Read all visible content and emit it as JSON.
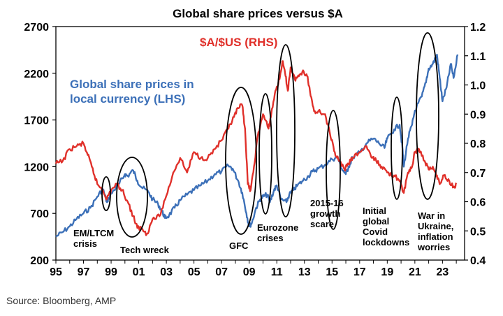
{
  "chart_data": {
    "type": "line",
    "title": "Global share prices versus $A",
    "x_tick_labels": [
      "95",
      "97",
      "99",
      "01",
      "03",
      "05",
      "07",
      "09",
      "11",
      "13",
      "15",
      "17",
      "19",
      "21",
      "23"
    ],
    "x_tick_years": [
      1995,
      1997,
      1999,
      2001,
      2003,
      2005,
      2007,
      2009,
      2011,
      2013,
      2015,
      2017,
      2019,
      2021,
      2023
    ],
    "xlim": [
      1995,
      2024.6
    ],
    "left_axis": {
      "ticks": [
        200,
        700,
        1200,
        1700,
        2200,
        2700
      ],
      "ylim": [
        200,
        2700
      ]
    },
    "right_axis": {
      "ticks": [
        "0.4",
        "0.5",
        "0.6",
        "0.7",
        "0.8",
        "0.9",
        "1.0",
        "1.1",
        "1.2"
      ],
      "ylim": [
        0.4,
        1.2
      ]
    },
    "series": [
      {
        "name": "Global share prices in local currency (LHS)",
        "legend_lines": [
          "Global share prices in",
          "local currency (LHS)"
        ],
        "axis": "left",
        "color": "#3c70b8",
        "x": [
          1995.0,
          1995.5,
          1996.0,
          1996.5,
          1997.0,
          1997.5,
          1998.0,
          1998.4,
          1998.7,
          1998.8,
          1999.2,
          1999.6,
          2000.0,
          2000.2,
          2000.6,
          2000.9,
          2001.2,
          2001.7,
          2002.0,
          2002.4,
          2002.7,
          2002.9,
          2003.2,
          2003.6,
          2004.0,
          2004.5,
          2005.0,
          2005.5,
          2006.0,
          2006.5,
          2007.0,
          2007.5,
          2007.8,
          2008.2,
          2008.5,
          2008.8,
          2009.0,
          2009.2,
          2009.5,
          2009.8,
          2010.0,
          2010.3,
          2010.5,
          2010.8,
          2011.0,
          2011.3,
          2011.7,
          2011.9,
          2012.2,
          2012.5,
          2012.9,
          2013.3,
          2013.6,
          2014.0,
          2014.5,
          2015.0,
          2015.4,
          2015.7,
          2016.0,
          2016.2,
          2016.5,
          2017.0,
          2017.5,
          2018.0,
          2018.4,
          2018.8,
          2019.0,
          2019.5,
          2019.9,
          2020.1,
          2020.2,
          2020.5,
          2020.8,
          2021.0,
          2021.5,
          2021.8,
          2022.0,
          2022.3,
          2022.6,
          2022.8,
          2023.0,
          2023.3,
          2023.6,
          2023.8,
          2024.1
        ],
        "values": [
          450,
          500,
          560,
          640,
          700,
          760,
          880,
          960,
          820,
          860,
          950,
          1020,
          1120,
          1100,
          1160,
          1050,
          980,
          930,
          850,
          800,
          720,
          650,
          680,
          760,
          840,
          900,
          950,
          1000,
          1050,
          1120,
          1150,
          1210,
          1180,
          1050,
          920,
          700,
          560,
          600,
          760,
          850,
          880,
          900,
          820,
          950,
          1000,
          850,
          820,
          900,
          950,
          1000,
          1050,
          1100,
          1150,
          1180,
          1220,
          1280,
          1300,
          1180,
          1120,
          1200,
          1300,
          1350,
          1450,
          1500,
          1450,
          1400,
          1500,
          1600,
          1650,
          1400,
          1200,
          1500,
          1650,
          1800,
          1950,
          2100,
          2250,
          2300,
          2400,
          2150,
          1900,
          2050,
          2300,
          2150,
          2400
        ]
      },
      {
        "name": "$A/$US (RHS)",
        "axis": "right",
        "color": "#e0302a",
        "x": [
          1995.0,
          1995.5,
          1996.0,
          1996.5,
          1997.0,
          1997.3,
          1997.6,
          1998.0,
          1998.4,
          1998.7,
          1999.0,
          1999.4,
          1999.8,
          2000.2,
          2000.6,
          2000.9,
          2001.2,
          2001.6,
          2002.0,
          2002.5,
          2003.0,
          2003.5,
          2004.0,
          2004.5,
          2005.0,
          2005.5,
          2006.0,
          2006.5,
          2007.0,
          2007.5,
          2007.9,
          2008.2,
          2008.5,
          2008.7,
          2008.9,
          2009.1,
          2009.3,
          2009.6,
          2010.0,
          2010.4,
          2010.6,
          2010.9,
          2011.2,
          2011.4,
          2011.6,
          2011.8,
          2012.0,
          2012.3,
          2012.6,
          2012.9,
          2013.2,
          2013.4,
          2013.7,
          2014.0,
          2014.5,
          2014.9,
          2015.2,
          2015.5,
          2015.9,
          2016.2,
          2016.5,
          2017.0,
          2017.5,
          2017.9,
          2018.2,
          2018.6,
          2019.0,
          2019.5,
          2019.9,
          2020.2,
          2020.5,
          2020.8,
          2021.0,
          2021.3,
          2021.7,
          2022.0,
          2022.3,
          2022.6,
          2022.8,
          2023.1,
          2023.5,
          2023.8,
          2024.0
        ],
        "values": [
          0.73,
          0.74,
          0.78,
          0.79,
          0.8,
          0.76,
          0.72,
          0.66,
          0.64,
          0.61,
          0.64,
          0.66,
          0.64,
          0.6,
          0.55,
          0.51,
          0.51,
          0.49,
          0.54,
          0.55,
          0.62,
          0.7,
          0.75,
          0.7,
          0.77,
          0.75,
          0.75,
          0.78,
          0.81,
          0.85,
          0.89,
          0.92,
          0.93,
          0.85,
          0.66,
          0.64,
          0.7,
          0.82,
          0.9,
          0.85,
          0.9,
          0.98,
          1.02,
          1.08,
          1.04,
          0.98,
          1.06,
          1.02,
          1.03,
          1.05,
          1.03,
          0.98,
          0.91,
          0.91,
          0.9,
          0.82,
          0.77,
          0.74,
          0.71,
          0.73,
          0.75,
          0.77,
          0.79,
          0.75,
          0.74,
          0.72,
          0.7,
          0.69,
          0.67,
          0.63,
          0.7,
          0.72,
          0.77,
          0.78,
          0.74,
          0.71,
          0.72,
          0.69,
          0.66,
          0.69,
          0.67,
          0.65,
          0.66
        ]
      }
    ],
    "annotations": [
      {
        "lines": [
          "EM/LTCM",
          "crisis"
        ]
      },
      {
        "lines": [
          "Tech wreck"
        ]
      },
      {
        "lines": [
          "GFC"
        ]
      },
      {
        "lines": [
          "Eurozone",
          "crises"
        ]
      },
      {
        "lines": [
          "2015-16",
          "growth",
          "scare"
        ]
      },
      {
        "lines": [
          "Initial",
          "global",
          "Covid",
          "lockdowns"
        ]
      },
      {
        "lines": [
          "War in",
          "Ukraine,",
          "inflation",
          "worries"
        ]
      }
    ]
  },
  "source": "Source: Bloomberg, AMP"
}
